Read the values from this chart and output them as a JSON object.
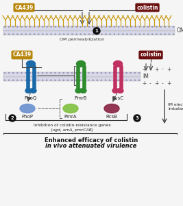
{
  "bg_color": "#f5f5f5",
  "ca439_color": "#b8860b",
  "ca439_text": "CA439",
  "colistin_color": "#6b0f0f",
  "colistin_text": "colistin",
  "mem_color": "#d8d8e8",
  "mem_line_color": "#aaaacc",
  "phoq_color": "#1a6aaa",
  "pmrb_color": "#2e8b2e",
  "rcsc_color": "#c03060",
  "phop_color": "#6a90d0",
  "pmra_color": "#80c040",
  "rcsb_color": "#882244",
  "lps_color": "#c8960a",
  "title_text": "Enhanced efficacy of colistin",
  "subtitle_text": "in vivo attenuated virulence",
  "label1": "OM permeabilization",
  "label2": "Inhibition of colistin-resistance genes",
  "label2b": "(ugd, arnA, pmrCAB)",
  "label3": "IM electrochemical\nimbalance",
  "om_label": "OM",
  "im_label": "IM"
}
